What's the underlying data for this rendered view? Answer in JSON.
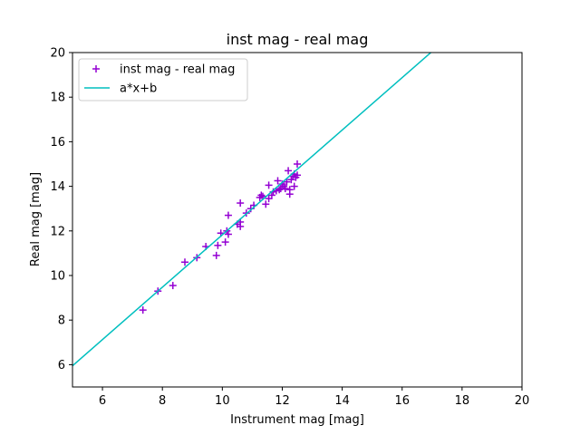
{
  "chart_data": {
    "type": "scatter",
    "title": "inst mag - real mag",
    "xlabel": "Instrument mag [mag]",
    "ylabel": "Real mag [mag]",
    "xlim": [
      5,
      20
    ],
    "ylim": [
      5,
      20
    ],
    "xticks": [
      6,
      8,
      10,
      12,
      14,
      16,
      18,
      20
    ],
    "yticks": [
      6,
      8,
      10,
      12,
      14,
      16,
      18,
      20
    ],
    "grid": false,
    "legend_position": "top-left",
    "series": [
      {
        "name": "inst mag - real mag",
        "kind": "scatter",
        "marker": "plus",
        "color": "#9400d3",
        "x": [
          7.35,
          7.85,
          8.35,
          8.75,
          9.15,
          9.45,
          9.8,
          9.85,
          9.95,
          10.1,
          10.15,
          10.2,
          10.2,
          10.5,
          10.6,
          10.6,
          10.6,
          10.8,
          10.95,
          11.05,
          11.25,
          11.3,
          11.35,
          11.45,
          11.55,
          11.55,
          11.65,
          11.7,
          11.8,
          11.85,
          11.9,
          11.95,
          12.0,
          12.05,
          12.1,
          12.15,
          12.2,
          12.25,
          12.25,
          12.3,
          12.35,
          12.4,
          12.4,
          12.45,
          12.5,
          12.5
        ],
        "y": [
          8.45,
          9.3,
          9.55,
          10.6,
          10.8,
          11.3,
          10.9,
          11.35,
          11.9,
          11.5,
          12.0,
          11.85,
          12.7,
          12.3,
          12.2,
          12.4,
          13.25,
          12.8,
          13.0,
          13.15,
          13.5,
          13.6,
          13.55,
          13.2,
          13.45,
          14.05,
          13.6,
          13.75,
          13.8,
          14.25,
          13.85,
          13.9,
          14.1,
          14.0,
          13.9,
          14.2,
          14.7,
          13.85,
          13.65,
          14.3,
          14.45,
          14.55,
          14.0,
          14.4,
          14.5,
          15.0
        ]
      },
      {
        "name": "a*x+b",
        "kind": "line",
        "color": "#00bfbf",
        "x": [
          5.0,
          17.0
        ],
        "y": [
          5.95,
          20.05
        ]
      }
    ]
  }
}
